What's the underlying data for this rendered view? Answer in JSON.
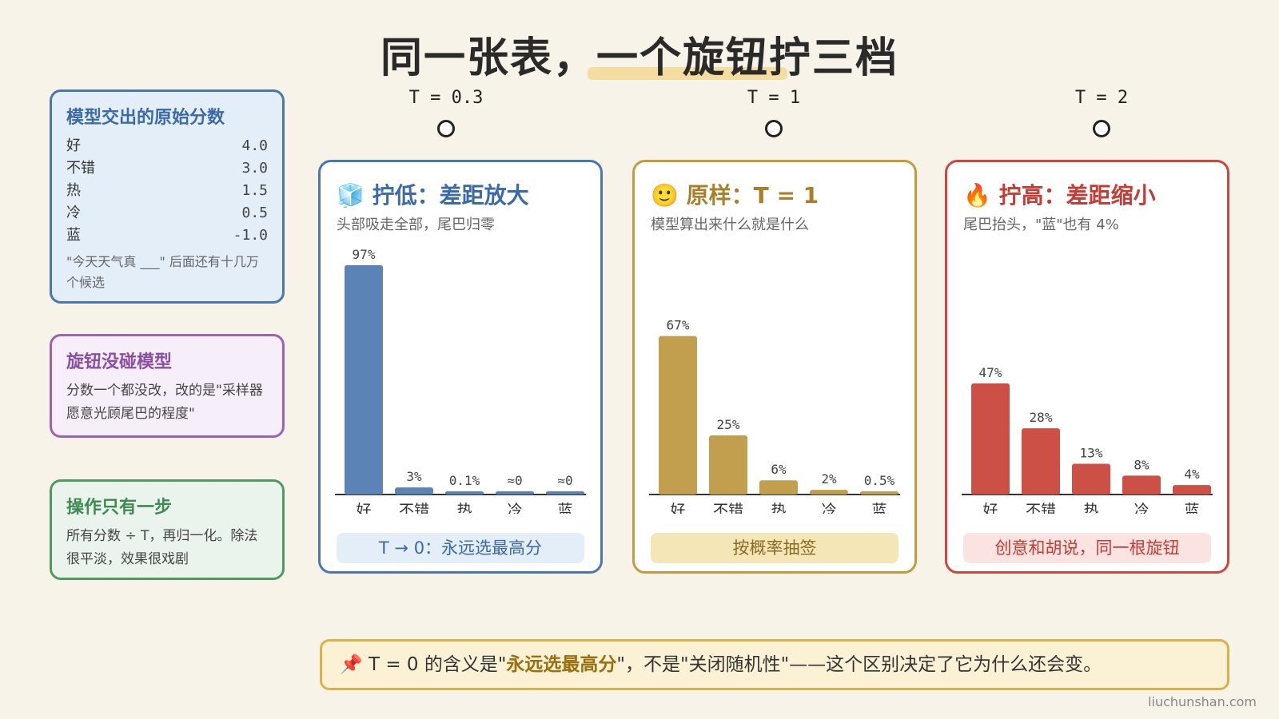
{
  "title": "同一张表，一个旋钮拧三档",
  "temperatures": [
    "T = 0.3",
    "T = 1",
    "T = 2"
  ],
  "score_note": {
    "title": "模型交出的原始分数",
    "rows": [
      {
        "word": "好",
        "score": "4.0"
      },
      {
        "word": "不错",
        "score": "3.0"
      },
      {
        "word": "热",
        "score": "1.5"
      },
      {
        "word": "冷",
        "score": "0.5"
      },
      {
        "word": "蓝",
        "score": "-1.0"
      }
    ],
    "footer": "\"今天天气真 ___\" 后面还有十几万个候选"
  },
  "knob_note": {
    "title": "旋钮没碰模型",
    "body": "分数一个都没改，改的是\"采样器愿意光顾尾巴的程度\""
  },
  "step_note": {
    "title": "操作只有一步",
    "body": "所有分数 ÷ T，再归一化。除法很平淡，效果很戏剧"
  },
  "panels": {
    "low": {
      "icon": "🧊",
      "title": "拧低：差距放大",
      "subtitle": "头部吸走全部，尾巴归零",
      "caption": "T → 0：永远选最高分"
    },
    "mid": {
      "icon": "🙂",
      "title": "原样：T = 1",
      "subtitle": "模型算出来什么就是什么",
      "caption": "按概率抽签"
    },
    "high": {
      "icon": "🔥",
      "title": "拧高：差距缩小",
      "subtitle": "尾巴抬头，\"蓝\"也有 4%",
      "caption": "创意和胡说，同一根旋钮"
    }
  },
  "chart_data": [
    {
      "type": "bar",
      "categories": [
        "好",
        "不错",
        "热",
        "冷",
        "蓝"
      ],
      "values": [
        97,
        3,
        0.1,
        0,
        0
      ],
      "labels": [
        "97%",
        "3%",
        "0.1%",
        "≈0",
        "≈0"
      ],
      "ylim": [
        0,
        100
      ],
      "color": "#5b83b5"
    },
    {
      "type": "bar",
      "categories": [
        "好",
        "不错",
        "热",
        "冷",
        "蓝"
      ],
      "values": [
        67,
        25,
        6,
        2,
        0.5
      ],
      "labels": [
        "67%",
        "25%",
        "6%",
        "2%",
        "0.5%"
      ],
      "ylim": [
        0,
        100
      ],
      "color": "#c29e4f"
    },
    {
      "type": "bar",
      "categories": [
        "好",
        "不错",
        "热",
        "冷",
        "蓝"
      ],
      "values": [
        47,
        28,
        13,
        8,
        4
      ],
      "labels": [
        "47%",
        "28%",
        "13%",
        "8%",
        "4%"
      ],
      "ylim": [
        0,
        100
      ],
      "color": "#cc5046"
    }
  ],
  "bottom_note": {
    "icon": "📌",
    "prefix": "T = 0 的含义是\"",
    "emphasis": "永远选最高分",
    "suffix": "\"，不是\"关闭随机性\"——这个区别决定了它为什么还会变。"
  },
  "credit": "liuchunshan.com"
}
